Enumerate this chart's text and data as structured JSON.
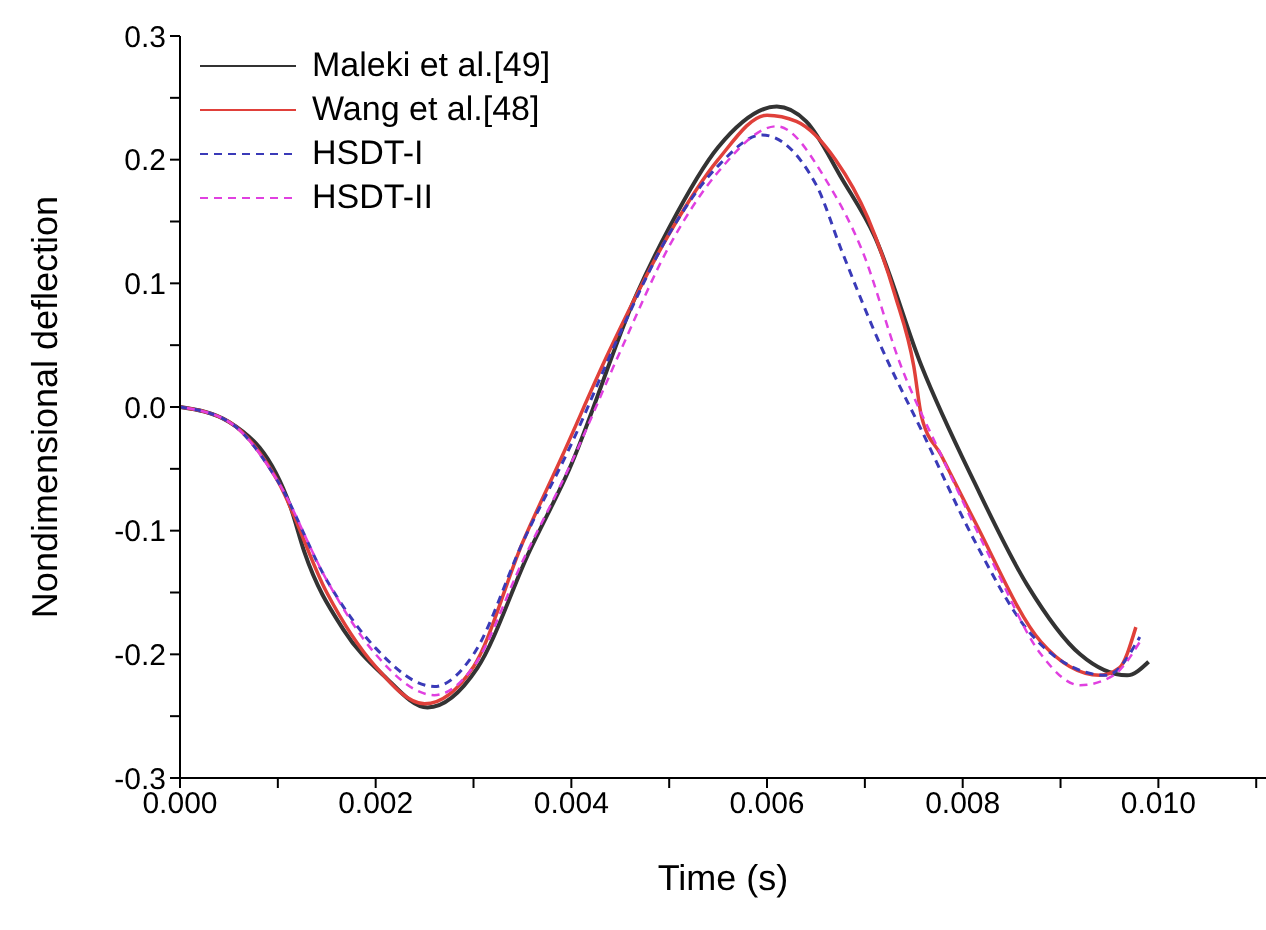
{
  "chart_data": {
    "type": "line",
    "xlabel": "Time (s)",
    "ylabel": "Nondimensional deflection",
    "xlim": [
      0,
      0.0111
    ],
    "xticks": [
      {
        "value": 0,
        "label": "0.000"
      },
      {
        "value": 0.001,
        "label": null
      },
      {
        "value": 0.002,
        "label": "0.002"
      },
      {
        "value": 0.003,
        "label": null
      },
      {
        "value": 0.004,
        "label": "0.004"
      },
      {
        "value": 0.005,
        "label": null
      },
      {
        "value": 0.006,
        "label": "0.006"
      },
      {
        "value": 0.007,
        "label": null
      },
      {
        "value": 0.008,
        "label": "0.008"
      },
      {
        "value": 0.009,
        "label": null
      },
      {
        "value": 0.01,
        "label": "0.010"
      },
      {
        "value": 0.011,
        "label": null
      }
    ],
    "ylim": [
      -0.3,
      0.3
    ],
    "yticks": [
      {
        "value": -0.3,
        "label": "-0.3"
      },
      {
        "value": -0.25,
        "label": null
      },
      {
        "value": -0.2,
        "label": "-0.2"
      },
      {
        "value": -0.15,
        "label": null
      },
      {
        "value": -0.1,
        "label": "-0.1"
      },
      {
        "value": -0.05,
        "label": null
      },
      {
        "value": 0,
        "label": "0.0"
      },
      {
        "value": 0.05,
        "label": null
      },
      {
        "value": 0.1,
        "label": "0.1"
      },
      {
        "value": 0.15,
        "label": null
      },
      {
        "value": 0.2,
        "label": "0.2"
      },
      {
        "value": 0.25,
        "label": null
      },
      {
        "value": 0.3,
        "label": "0.3"
      }
    ],
    "grid": false,
    "legend": "top left",
    "marker": "none",
    "series": [
      {
        "name": "Maleki et al.[49]",
        "color": "#333333",
        "line_style": "solid",
        "x": [
          0,
          0.0005,
          0.00113,
          0.00127,
          0.00167,
          0.00208,
          0.00253,
          0.00304,
          0.00357,
          0.00398,
          0.00466,
          0.005,
          0.0055,
          0.0061,
          0.0064,
          0.00677,
          0.0071,
          0.00758,
          0.00812,
          0.00866,
          0.0092,
          0.00968,
          0.0099
        ],
        "values": [
          0,
          -0.012,
          -0.081,
          -0.117,
          -0.18,
          -0.217,
          -0.243,
          -0.211,
          -0.117,
          -0.05,
          0.09,
          0.145,
          0.21,
          0.243,
          0.231,
          0.184,
          0.138,
          0.033,
          -0.061,
          -0.144,
          -0.2,
          -0.217,
          -0.206
        ]
      },
      {
        "name": "Wang et al.[48]",
        "color": "#e0403a",
        "line_style": "solid",
        "x": [
          0,
          0.0005,
          0.001,
          0.0015,
          0.002,
          0.0025,
          0.003,
          0.0035,
          0.00391,
          0.00438,
          0.005,
          0.0055,
          0.006,
          0.0063,
          0.0067,
          0.00703,
          0.00731,
          0.0075,
          0.00758,
          0.00778,
          0.00812,
          0.0088,
          0.0094,
          0.0096,
          0.00977
        ],
        "values": [
          0,
          -0.012,
          -0.06,
          -0.15,
          -0.21,
          -0.24,
          -0.21,
          -0.11,
          -0.039,
          0.044,
          0.14,
          0.2,
          0.236,
          0.231,
          0.2,
          0.153,
          0.09,
          0.033,
          -0.008,
          -0.039,
          -0.092,
          -0.19,
          -0.217,
          -0.211,
          -0.178
        ]
      },
      {
        "name": "HSDT-I",
        "color": "#3a3ab8",
        "line_style": "dashed",
        "x": [
          0,
          0.0005,
          0.001,
          0.0015,
          0.002,
          0.0026,
          0.003,
          0.0035,
          0.004,
          0.0045,
          0.005,
          0.0055,
          0.00595,
          0.0065,
          0.00676,
          0.00717,
          0.00758,
          0.00812,
          0.00866,
          0.00914,
          0.00947,
          0.00981
        ],
        "values": [
          0,
          -0.012,
          -0.06,
          -0.14,
          -0.195,
          -0.226,
          -0.2,
          -0.11,
          -0.03,
          0.06,
          0.14,
          0.195,
          0.22,
          0.18,
          0.127,
          0.048,
          -0.019,
          -0.108,
          -0.18,
          -0.211,
          -0.217,
          -0.186
        ]
      },
      {
        "name": "HSDT-II",
        "color": "#e040e0",
        "line_style": "dashed",
        "x": [
          0,
          0.0005,
          0.001,
          0.0015,
          0.002,
          0.0026,
          0.003,
          0.0035,
          0.004,
          0.0045,
          0.005,
          0.0055,
          0.0061,
          0.00663,
          0.00697,
          0.00737,
          0.00778,
          0.00832,
          0.0088,
          0.0092,
          0.00954,
          0.00981
        ],
        "values": [
          0,
          -0.012,
          -0.06,
          -0.14,
          -0.2,
          -0.233,
          -0.21,
          -0.125,
          -0.045,
          0.045,
          0.13,
          0.19,
          0.227,
          0.18,
          0.127,
          0.033,
          -0.039,
          -0.128,
          -0.2,
          -0.225,
          -0.217,
          -0.19
        ]
      }
    ]
  }
}
